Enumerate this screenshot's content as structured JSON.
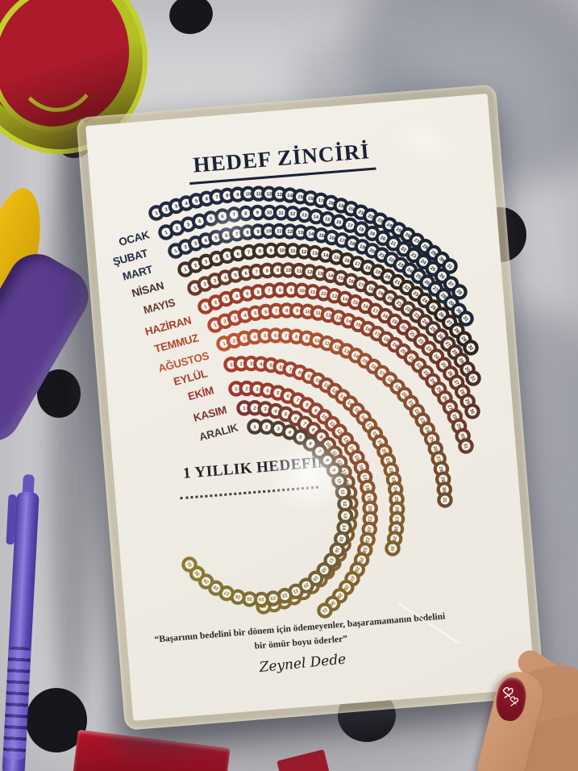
{
  "poster": {
    "title": "HEDEF ZİNCİRİ",
    "goal_heading": "1 YILLIK HEDEFİM",
    "quote_line1": "“Başarının bedelini bir dönem için ödemeyenler, başaramamanın bedelini",
    "quote_line2": "bir ömür boyu öderler”",
    "signature": "Zeynel Dede",
    "title_color": "#1b2236",
    "paper_color": "#f1eee6",
    "months": [
      {
        "name": "OCAK",
        "days": 31,
        "label_color": "#212a41",
        "c1": "#212a41",
        "c2": "#1b2433",
        "s": [
          194,
          264
        ],
        "e": [
          558,
          330
        ],
        "h": 52,
        "lp": [
          186,
          295
        ]
      },
      {
        "name": "ŞUBAT",
        "days": 28,
        "label_color": "#222b42",
        "c1": "#222b42",
        "c2": "#1c2534",
        "s": [
          206,
          288
        ],
        "e": [
          570,
          362
        ],
        "h": 56,
        "lp": [
          184,
          318
        ]
      },
      {
        "name": "MART",
        "days": 31,
        "label_color": "#242c43",
        "c1": "#242c43",
        "c2": "#1e2736",
        "s": [
          218,
          311
        ],
        "e": [
          578,
          395
        ],
        "h": 60,
        "lp": [
          190,
          338
        ]
      },
      {
        "name": "NİSAN",
        "days": 30,
        "label_color": "#403027",
        "c1": "#403027",
        "c2": "#2f231c",
        "s": [
          230,
          334
        ],
        "e": [
          584,
          431
        ],
        "h": 64,
        "lp": [
          204,
          358
        ]
      },
      {
        "name": "MAYIS",
        "days": 31,
        "label_color": "#6a3a2c",
        "c1": "#6a3a2c",
        "c2": "#4b2e25",
        "s": [
          242,
          357
        ],
        "e": [
          587,
          469
        ],
        "h": 68,
        "lp": [
          218,
          379
        ]
      },
      {
        "name": "HAZİRAN",
        "days": 30,
        "label_color": "#a43c2b",
        "c1": "#a43c2b",
        "c2": "#5f3428",
        "s": [
          255,
          380
        ],
        "e": [
          586,
          510
        ],
        "h": 73,
        "lp": [
          238,
          401
        ]
      },
      {
        "name": "TEMMUZ",
        "days": 31,
        "label_color": "#b2462f",
        "c1": "#b2462f",
        "c2": "#693c2a",
        "s": [
          267,
          403
        ],
        "e": [
          578,
          553
        ],
        "h": 78,
        "lp": [
          247,
          423
        ]
      },
      {
        "name": "AĞUSTOS",
        "days": 31,
        "label_color": "#c05434",
        "c1": "#c05434",
        "c2": "#6b4c2e",
        "s": [
          278,
          426
        ],
        "e": [
          552,
          620
        ],
        "h": 84,
        "lp": [
          260,
          445
        ]
      },
      {
        "name": "EYLÜL",
        "days": 30,
        "label_color": "#a83c2e",
        "c1": "#a83c2e",
        "c2": "#7a632f",
        "s": [
          287,
          452
        ],
        "e": [
          487,
          680
        ],
        "h": 80,
        "lp": [
          258,
          467
        ]
      },
      {
        "name": "EKİM",
        "days": 31,
        "label_color": "#9c3530",
        "c1": "#9c3530",
        "c2": "#7f6a2e",
        "s": [
          293,
          482
        ],
        "e": [
          403,
          757
        ],
        "h": 108,
        "lp": [
          266,
          488
        ]
      },
      {
        "name": "KASIM",
        "days": 30,
        "label_color": "#7b3430",
        "c1": "#7b3430",
        "c2": "#867331",
        "s": [
          303,
          506
        ],
        "e": [
          327,
          752
        ],
        "h": 120,
        "lp": [
          282,
          512
        ]
      },
      {
        "name": "ARALIK",
        "days": 31,
        "label_color": "#4b3b35",
        "c1": "#4b3b35",
        "c2": "#8d7b33",
        "s": [
          316,
          529
        ],
        "e": [
          235,
          700
        ],
        "h": 158,
        "lp": [
          296,
          534
        ]
      }
    ]
  },
  "scene": {
    "fabric_color": "#d6d6d8",
    "polka_dot_color": "#17161a",
    "laminate_color": "#c4ba9c",
    "pen_color": "#5b48b4",
    "tin_colors": [
      "#b4c124",
      "#ad1a2c"
    ],
    "purple_ribbon_color": "#5a3d8f",
    "yellow_piece_color": "#e8b60e",
    "red_box_color": "#9e1226",
    "nail_polish_color": "#7c1426",
    "skin_color": "#c8926d"
  }
}
